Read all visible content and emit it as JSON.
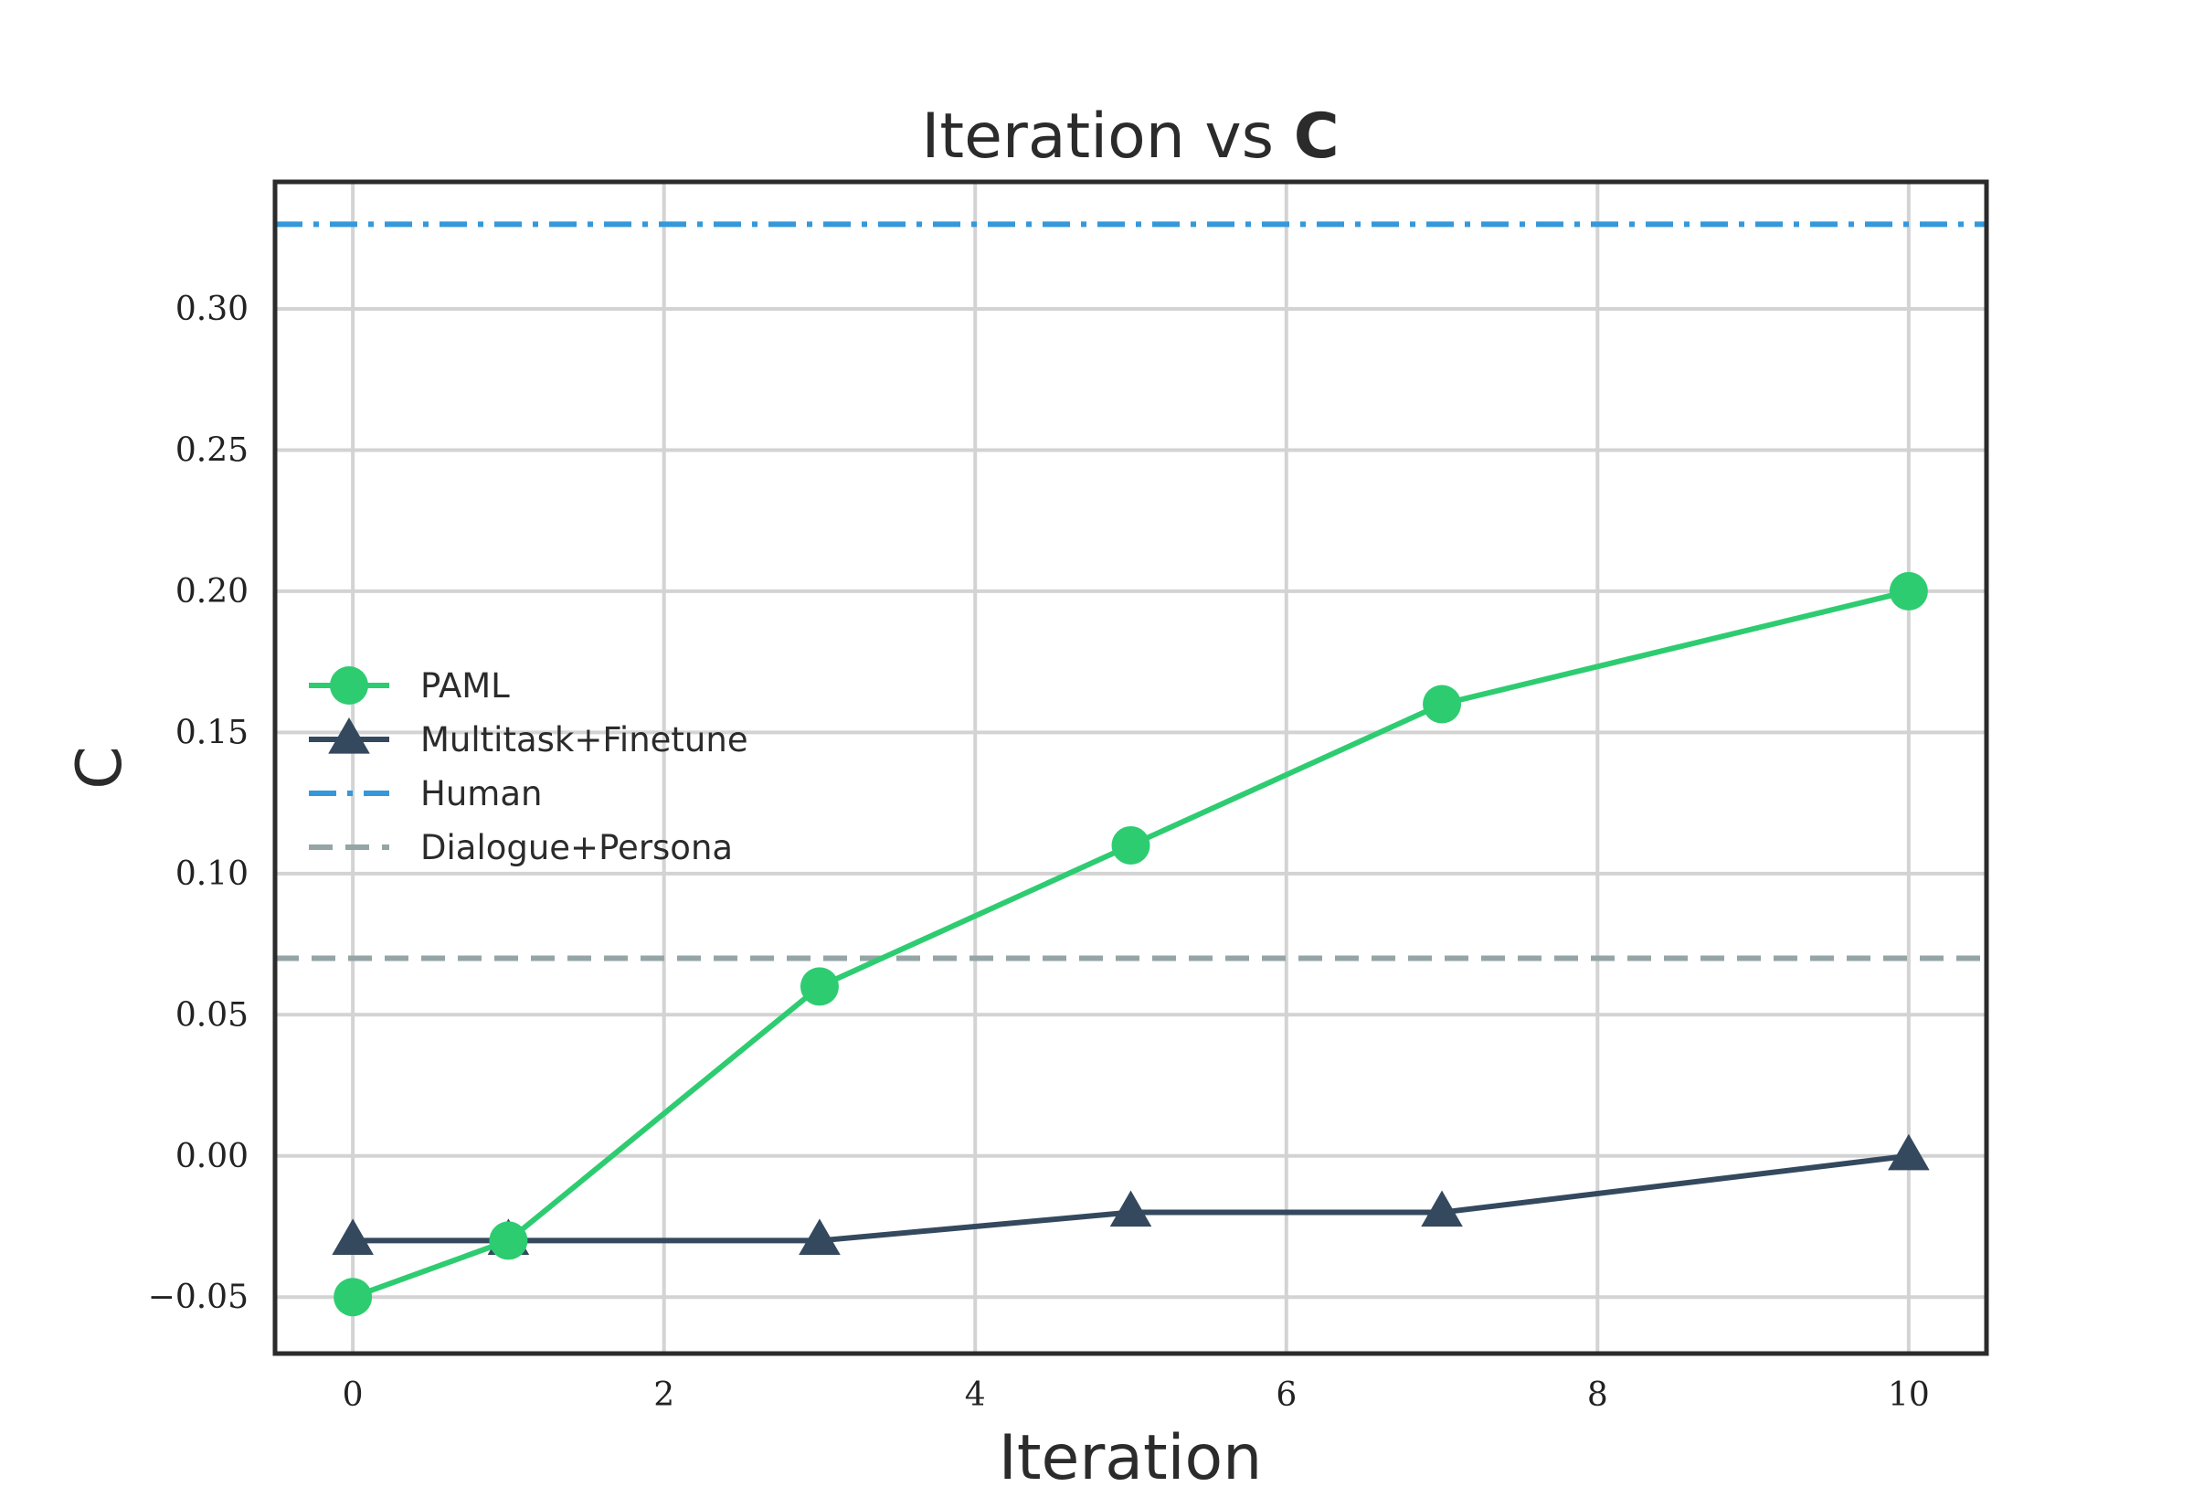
{
  "chart_data": {
    "type": "line",
    "title_prefix": "Iteration vs ",
    "title_bold": "C",
    "xlabel": "Iteration",
    "ylabel": "C",
    "xlim": [
      -0.5,
      10.5
    ],
    "ylim": [
      -0.07,
      0.345
    ],
    "xticks": [
      0,
      2,
      4,
      6,
      8,
      10
    ],
    "xtick_labels": [
      "0",
      "2",
      "4",
      "6",
      "8",
      "10"
    ],
    "yticks": [
      -0.05,
      0.0,
      0.05,
      0.1,
      0.15,
      0.2,
      0.25,
      0.3
    ],
    "ytick_labels": [
      "−0.05",
      "0.00",
      "0.05",
      "0.10",
      "0.15",
      "0.20",
      "0.25",
      "0.30"
    ],
    "grid": true,
    "legend_position": "center-left",
    "series": [
      {
        "name": "PAML",
        "x": [
          0,
          1,
          3,
          5,
          7,
          10
        ],
        "values": [
          -0.05,
          -0.03,
          0.06,
          0.11,
          0.16,
          0.2
        ],
        "color": "#2ecc71",
        "marker": "circle",
        "style": "solid"
      },
      {
        "name": "Multitask+Finetune",
        "x": [
          0,
          1,
          3,
          5,
          7,
          10
        ],
        "values": [
          -0.03,
          -0.03,
          -0.03,
          -0.02,
          -0.02,
          0.0
        ],
        "color": "#34495e",
        "marker": "triangle",
        "style": "solid"
      }
    ],
    "reference_lines": [
      {
        "name": "Human",
        "value": 0.33,
        "color": "#3498db",
        "style": "dashdot"
      },
      {
        "name": "Dialogue+Persona",
        "value": 0.07,
        "color": "#95a5a6",
        "style": "dashed"
      }
    ]
  }
}
